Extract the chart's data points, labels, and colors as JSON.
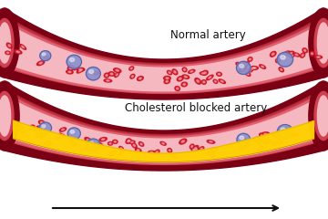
{
  "bg_color": "#ffffff",
  "outer_dark": "#7a0014",
  "outer_mid": "#a01828",
  "wall_col": "#d04050",
  "wall_light": "#e06070",
  "lumen_col": "#f5b8c0",
  "lumen_inner": "#f8ccd4",
  "rbc_col": "#cc1122",
  "rbc_center": "#f5b8c0",
  "wbc_col": "#8890cc",
  "wbc_edge": "#5560aa",
  "chol_col": "#ffd000",
  "chol_edge": "#e8b800",
  "text_col": "#111111",
  "arrow_col": "#111111",
  "title1": "Normal artery",
  "title2": "Cholesterol blocked artery",
  "title_fs": 8.5
}
